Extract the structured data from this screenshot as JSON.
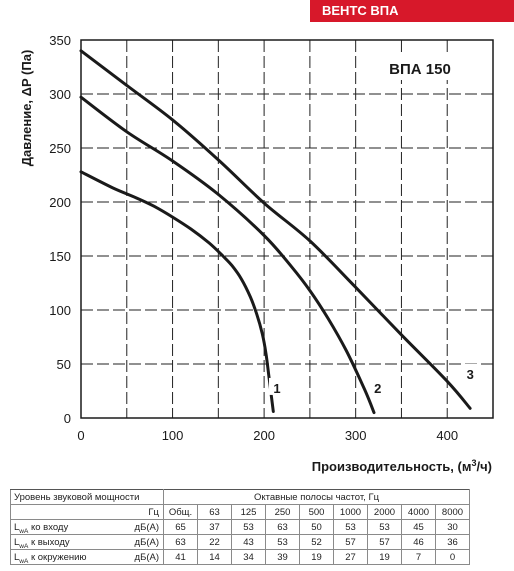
{
  "brand": "ВЕНТС ВПА",
  "chart_data": {
    "type": "line",
    "title": "ВПА 150",
    "ylabel": "Давление, ΔP (Па)",
    "xlabel_prefix": "Производительность, (м",
    "xlabel_sup": "3",
    "xlabel_suffix": "/ч)",
    "xlim": [
      0,
      450
    ],
    "ylim": [
      0,
      350
    ],
    "x_ticks": [
      "0",
      "100",
      "200",
      "300",
      "400"
    ],
    "y_ticks": [
      "0",
      "50",
      "100",
      "150",
      "200",
      "250",
      "300",
      "350"
    ],
    "grid": true,
    "series": [
      {
        "name": "1",
        "x": [
          0,
          35,
          60,
          80,
          100,
          120,
          140,
          155,
          165,
          175,
          185,
          192,
          198,
          202,
          205,
          208,
          210
        ],
        "y": [
          228,
          213,
          204,
          196,
          186,
          175,
          162,
          150,
          141,
          129,
          112,
          96,
          78,
          60,
          40,
          20,
          6
        ]
      },
      {
        "name": "2",
        "x": [
          0,
          50,
          100,
          150,
          200,
          230,
          250,
          270,
          290,
          310,
          320
        ],
        "y": [
          297,
          265,
          238,
          207,
          169,
          140,
          118,
          92,
          62,
          26,
          5
        ]
      },
      {
        "name": "3",
        "x": [
          0,
          50,
          100,
          150,
          200,
          250,
          300,
          350,
          400,
          425
        ],
        "y": [
          340,
          308,
          276,
          239,
          199,
          164,
          121,
          77,
          34,
          9
        ]
      }
    ],
    "series_label_positions": [
      {
        "x": 213,
        "y": 26
      },
      {
        "x": 323,
        "y": 26
      },
      {
        "x": 424,
        "y": 39
      }
    ]
  },
  "sound_table": {
    "header_left": "Уровень звуковой мощности",
    "header_right": "Октавные полосы частот, Гц",
    "unit_label": "Гц",
    "columns": [
      "Общ.",
      "63",
      "125",
      "250",
      "500",
      "1000",
      "2000",
      "4000",
      "8000"
    ],
    "rows": [
      {
        "base": "L",
        "sub": "wA",
        "rest": " ко входу",
        "unit": "дБ(А)",
        "values": [
          "65",
          "37",
          "53",
          "63",
          "50",
          "53",
          "53",
          "45",
          "30"
        ]
      },
      {
        "base": "L",
        "sub": "wA",
        "rest": " к выходу",
        "unit": "дБ(А)",
        "values": [
          "63",
          "22",
          "43",
          "53",
          "52",
          "57",
          "57",
          "46",
          "36"
        ]
      },
      {
        "base": "L",
        "sub": "wA",
        "rest": " к окружению",
        "unit": "дБ(А)",
        "values": [
          "41",
          "14",
          "34",
          "39",
          "19",
          "27",
          "19",
          "7",
          "0"
        ]
      }
    ]
  }
}
